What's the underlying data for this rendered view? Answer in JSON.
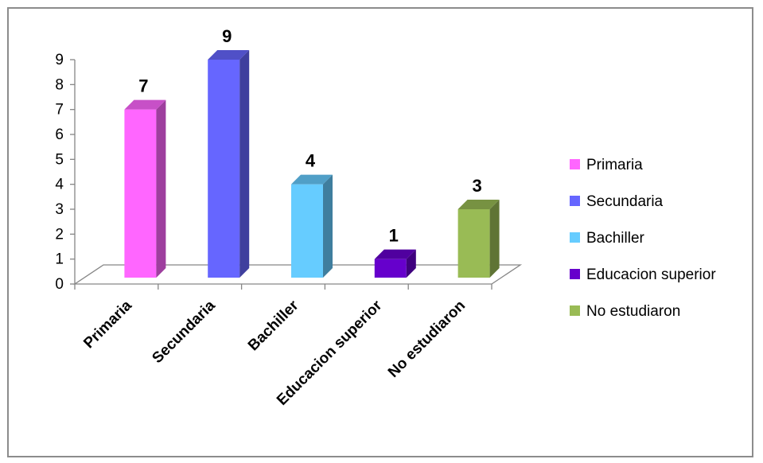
{
  "chart_data": {
    "type": "bar",
    "categories": [
      "Primaria",
      "Secundaria",
      "Bachiller",
      "Educacion superior",
      "No estudiaron"
    ],
    "values": [
      7,
      9,
      4,
      1,
      3
    ],
    "colors": [
      "#ff66ff",
      "#6666ff",
      "#66ccff",
      "#6600cc",
      "#99bb55"
    ],
    "ylim": [
      0,
      9
    ],
    "yticks": [
      "0",
      "1",
      "2",
      "3",
      "4",
      "5",
      "6",
      "7",
      "8",
      "9"
    ],
    "data_labels": [
      "7",
      "9",
      "4",
      "1",
      "3"
    ],
    "legend": [
      "Primaria",
      "Secundaria",
      "Bachiller",
      "Educacion superior",
      "No estudiaron"
    ],
    "legend_position": "right",
    "grid": false,
    "style": "3d-column"
  }
}
